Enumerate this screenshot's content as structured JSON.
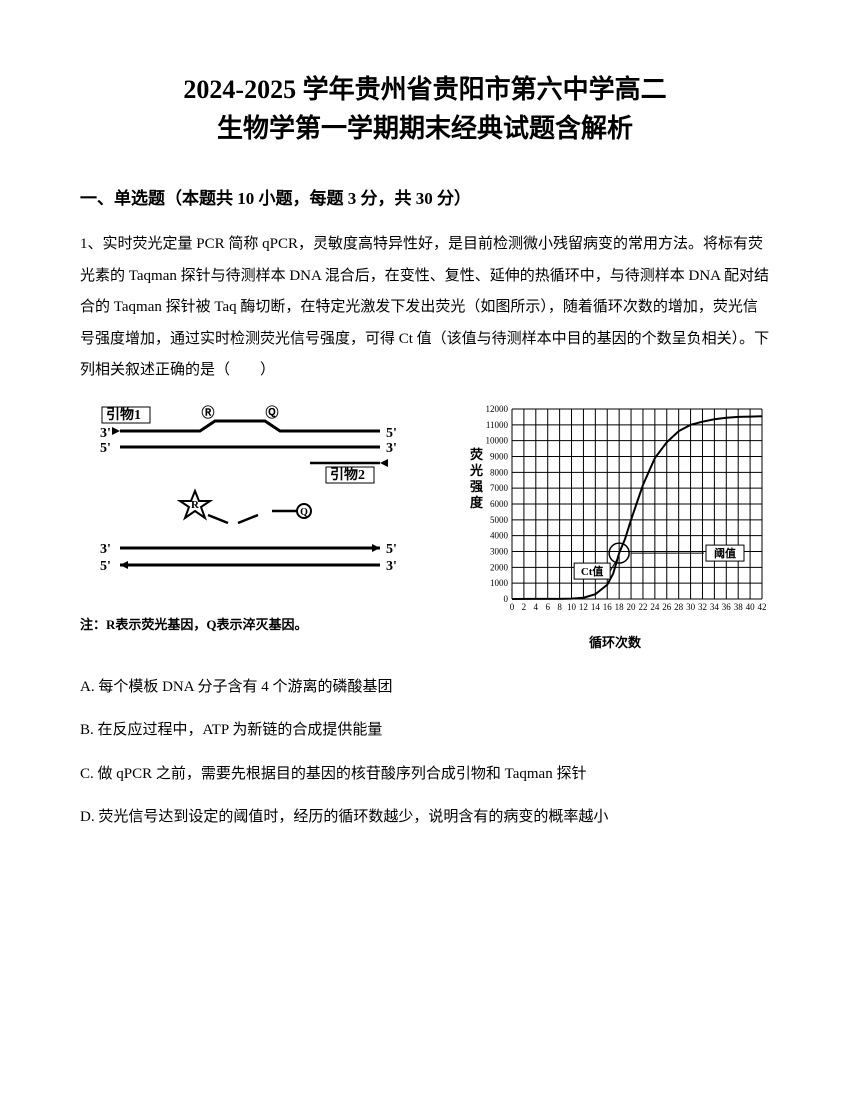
{
  "title": {
    "line1": "2024-2025 学年贵州省贵阳市第六中学高二",
    "line2": "生物学第一学期期末经典试题含解析"
  },
  "section": "一、单选题（本题共 10 小题，每题 3 分，共 30 分）",
  "q1": {
    "stem": "1、实时荧光定量 PCR 简称 qPCR，灵敏度高特异性好，是目前检测微小残留病变的常用方法。将标有荧光素的 Taqman 探针与待测样本 DNA 混合后，在变性、复性、延伸的热循环中，与待测样本 DNA 配对结合的 Taqman 探针被 Taq 酶切断，在特定光激发下发出荧光（如图所示），随着循环次数的增加，荧光信号强度增加，通过实时检测荧光信号强度，可得 Ct 值（该值与待测样本中目的基因的个数呈负相关）。下列相关叙述正确的是（　　）",
    "optionA": "A. 每个模板 DNA 分子含有 4 个游离的磷酸基团",
    "optionB": "B. 在反应过程中，ATP 为新链的合成提供能量",
    "optionC": "C. 做 qPCR 之前，需要先根据目的基因的核苷酸序列合成引物和 Taqman 探针",
    "optionD": "D. 荧光信号达到设定的阈值时，经历的循环数越少，说明含有的病变的概率越小"
  },
  "diagram": {
    "labels": {
      "primer1": "引物1",
      "primer2": "引物2",
      "r": "R",
      "q": "Q",
      "three": "3'",
      "five": "5'"
    },
    "note": "注：R表示荧光基因，Q表示淬灭基因。",
    "colors": {
      "stroke": "#000000",
      "fill_black": "#000000"
    }
  },
  "chart": {
    "type": "line",
    "title_y": "荧光强度",
    "title_x": "循环次数",
    "xlim": [
      0,
      42
    ],
    "ylim": [
      0,
      12000
    ],
    "xticks": [
      0,
      2,
      4,
      6,
      8,
      10,
      12,
      14,
      16,
      18,
      20,
      22,
      24,
      26,
      28,
      30,
      32,
      34,
      36,
      38,
      40,
      42
    ],
    "yticks": [
      0,
      1000,
      2000,
      3000,
      4000,
      5000,
      6000,
      7000,
      8000,
      9000,
      10000,
      11000,
      12000
    ],
    "ct_value_x": 18,
    "threshold_y": 2900,
    "labels": {
      "ct": "Ct值",
      "threshold": "阈值"
    },
    "colors": {
      "grid": "#000000",
      "line": "#000000",
      "bg": "#ffffff",
      "label_box_border": "#000000"
    },
    "curve_points": [
      [
        0,
        0
      ],
      [
        4,
        5
      ],
      [
        8,
        10
      ],
      [
        10,
        20
      ],
      [
        12,
        80
      ],
      [
        14,
        300
      ],
      [
        16,
        900
      ],
      [
        17,
        1600
      ],
      [
        18,
        2900
      ],
      [
        19,
        3800
      ],
      [
        20,
        5000
      ],
      [
        22,
        7200
      ],
      [
        24,
        8900
      ],
      [
        26,
        9900
      ],
      [
        28,
        10600
      ],
      [
        30,
        11000
      ],
      [
        32,
        11200
      ],
      [
        34,
        11350
      ],
      [
        36,
        11450
      ],
      [
        38,
        11500
      ],
      [
        40,
        11520
      ],
      [
        42,
        11540
      ]
    ],
    "grid_linewidth": 1,
    "curve_linewidth": 2,
    "label_fontsize": 11,
    "tick_fontsize": 9
  }
}
